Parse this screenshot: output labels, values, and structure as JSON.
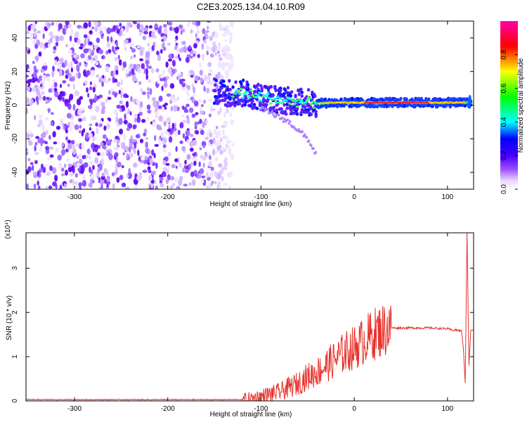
{
  "title": "C2E3.2025.134.04.10.R09",
  "chart_data": [
    {
      "type": "heatmap",
      "xlabel": "Height of straight line (km)",
      "ylabel": "Frequency (Hz)",
      "xlim": [
        -352,
        128
      ],
      "ylim": [
        -50,
        50
      ],
      "xticks": [
        -300,
        -200,
        -100,
        0,
        100
      ],
      "xtick_labels": [
        "-300",
        "-200",
        "-100",
        "0",
        "100"
      ],
      "yticks": [
        -40,
        -20,
        0,
        20,
        40
      ],
      "ytick_labels": [
        "-40",
        "-20",
        "0",
        "20",
        "40"
      ],
      "colorbar": {
        "label": "Normalized spectral amplitude",
        "range": [
          0,
          1
        ],
        "ticks": [
          0.0,
          0.2,
          0.4,
          0.6,
          0.8
        ],
        "tick_labels": [
          "0.0",
          "0.2",
          "0.4",
          "0.6",
          "0.8"
        ],
        "colormap": "rainbow (white→purple→blue→cyan→green→yellow→red→magenta)"
      },
      "features": {
        "noise_region_x": [
          -352,
          -130
        ],
        "signal_track": [
          {
            "x": -150,
            "f": 8
          },
          {
            "x": -120,
            "f": 7
          },
          {
            "x": -100,
            "f": 5
          },
          {
            "x": -80,
            "f": 3
          },
          {
            "x": -60,
            "f": 2
          },
          {
            "x": -40,
            "f": 1
          },
          {
            "x": -20,
            "f": 1.5
          },
          {
            "x": 0,
            "f": 1.5
          },
          {
            "x": 50,
            "f": 1.5
          },
          {
            "x": 100,
            "f": 1.5
          },
          {
            "x": 125,
            "f": 1.5
          }
        ],
        "lower_branch": [
          {
            "x": -100,
            "f": -2
          },
          {
            "x": -70,
            "f": -10
          },
          {
            "x": -50,
            "f": -20
          },
          {
            "x": -40,
            "f": -30
          }
        ]
      }
    },
    {
      "type": "line",
      "xlabel": "Height of straight line (km)",
      "ylabel": "SNR (10 * v/v)",
      "y_multiplier": "(x10⁴)",
      "xlim": [
        -352,
        128
      ],
      "ylim": [
        0,
        3.8
      ],
      "xticks": [
        -300,
        -200,
        -100,
        0,
        100
      ],
      "xtick_labels": [
        "-300",
        "-200",
        "-100",
        "0",
        "100"
      ],
      "yticks": [
        0,
        1,
        2,
        3
      ],
      "ytick_labels": [
        "0",
        "1",
        "2",
        "3"
      ],
      "color": "#e8322b",
      "series": [
        {
          "x": [
            -352,
            -120,
            -110,
            -100,
            -90,
            -80,
            -70,
            -60,
            -50,
            -40,
            -30,
            -20,
            -10,
            0,
            10,
            20,
            30,
            40,
            50,
            60,
            80,
            100,
            105,
            110,
            115,
            117,
            119,
            121,
            123,
            125,
            128
          ],
          "y": [
            0.02,
            0.02,
            0.05,
            0.1,
            0.15,
            0.2,
            0.3,
            0.4,
            0.55,
            0.65,
            0.8,
            0.95,
            1.1,
            1.2,
            1.35,
            1.5,
            1.6,
            1.65,
            1.65,
            1.65,
            1.65,
            1.63,
            1.6,
            1.6,
            1.58,
            1.2,
            0.4,
            3.8,
            0.8,
            1.6,
            1.6
          ]
        }
      ]
    }
  ]
}
